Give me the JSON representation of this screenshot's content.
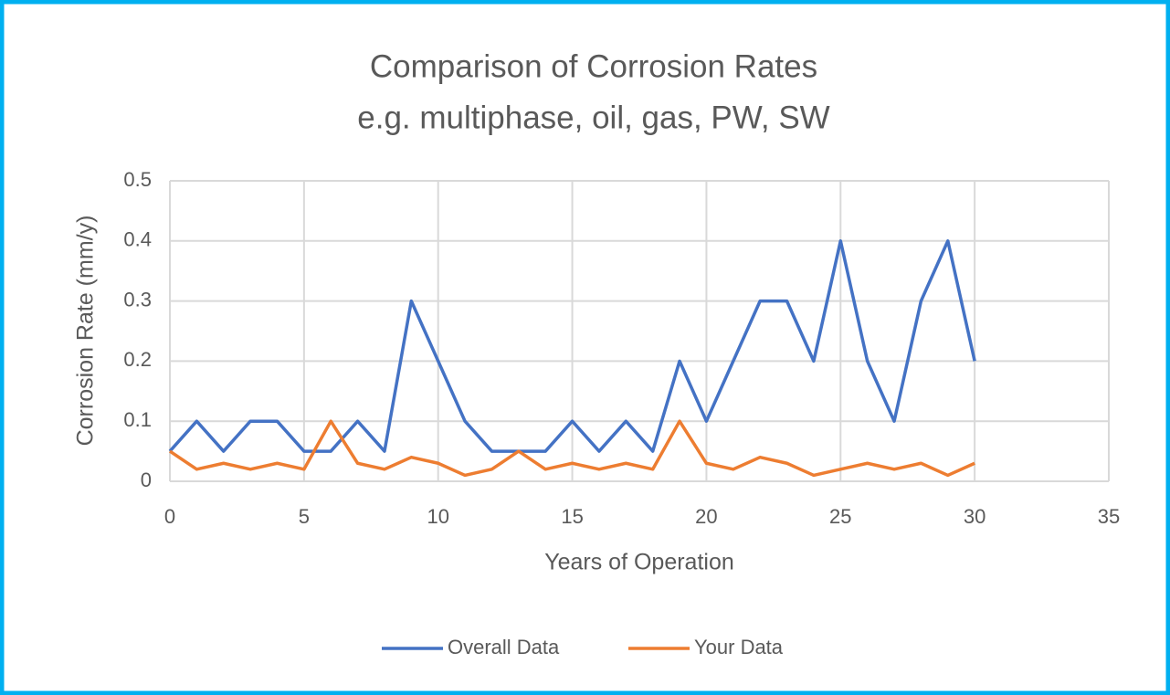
{
  "chart_data": {
    "type": "line",
    "title": "Comparison of Corrosion Rates",
    "subtitle": "e.g. multiphase, oil, gas, PW, SW",
    "x_label": "Years of Operation",
    "y_label": "Corrosion Rate (mm/y)",
    "x": [
      0,
      1,
      2,
      3,
      4,
      5,
      6,
      7,
      8,
      9,
      10,
      11,
      12,
      13,
      14,
      15,
      16,
      17,
      18,
      19,
      20,
      21,
      22,
      23,
      24,
      25,
      26,
      27,
      28,
      29,
      30
    ],
    "series": [
      {
        "name": "Overall Data",
        "color": "#4472c4",
        "values": [
          0.05,
          0.1,
          0.05,
          0.1,
          0.1,
          0.05,
          0.05,
          0.1,
          0.05,
          0.3,
          0.2,
          0.1,
          0.05,
          0.05,
          0.05,
          0.1,
          0.05,
          0.1,
          0.05,
          0.2,
          0.1,
          0.2,
          0.3,
          0.3,
          0.2,
          0.4,
          0.2,
          0.1,
          0.3,
          0.4,
          0.2
        ]
      },
      {
        "name": "Your Data",
        "color": "#ed7d31",
        "values": [
          0.05,
          0.02,
          0.03,
          0.02,
          0.03,
          0.02,
          0.1,
          0.03,
          0.02,
          0.04,
          0.03,
          0.01,
          0.02,
          0.05,
          0.02,
          0.03,
          0.02,
          0.03,
          0.02,
          0.1,
          0.03,
          0.02,
          0.04,
          0.03,
          0.01,
          0.02,
          0.03,
          0.02,
          0.03,
          0.01,
          0.03
        ]
      }
    ],
    "xlim": [
      0,
      35
    ],
    "xticks": [
      0,
      5,
      10,
      15,
      20,
      25,
      30,
      35
    ],
    "ylim": [
      0,
      0.5
    ],
    "yticks": [
      0,
      0.1,
      0.2,
      0.3,
      0.4,
      0.5
    ],
    "grid": true,
    "legend": "bottom"
  }
}
